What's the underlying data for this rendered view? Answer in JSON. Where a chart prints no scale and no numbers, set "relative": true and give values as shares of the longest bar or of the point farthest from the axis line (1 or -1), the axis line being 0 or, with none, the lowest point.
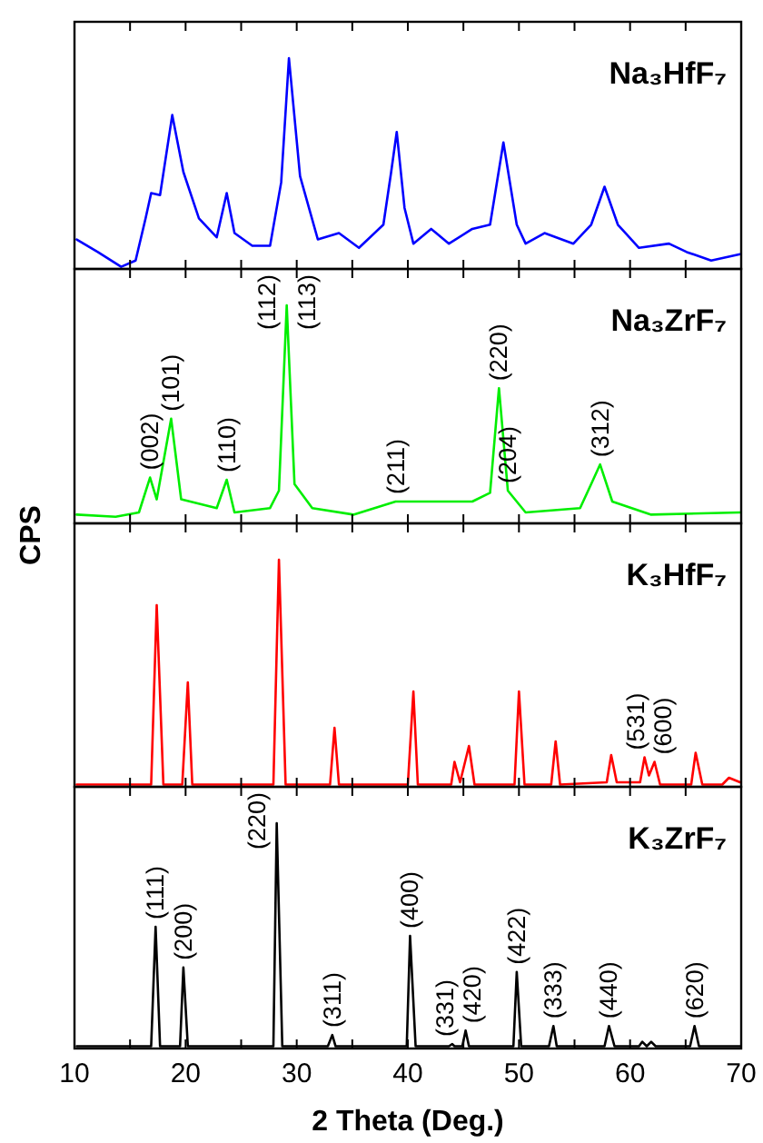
{
  "chart_data": [
    {
      "type": "line",
      "title": "Na₃HfF₇",
      "relative": true,
      "xlim": [
        10,
        70
      ],
      "xticks": [
        10,
        {
          "value": 15,
          "label": null
        },
        20,
        {
          "value": 25,
          "label": null
        },
        30,
        {
          "value": 35,
          "label": null
        },
        40,
        {
          "value": 45,
          "label": null
        },
        50,
        {
          "value": 55,
          "label": null
        },
        60,
        {
          "value": 65,
          "label": null
        },
        70
      ],
      "tick_labels": false,
      "grid": false,
      "legend": false,
      "series": [
        {
          "color": "#0000ff",
          "x": [
            10.2,
            12.1,
            14.2,
            15.5,
            16.4,
            16.9,
            17.7,
            18.8,
            19.8,
            21.2,
            22.8,
            23.7,
            24.4,
            26.0,
            27.6,
            28.6,
            29.3,
            30.3,
            31.9,
            33.8,
            35.6,
            37.8,
            38.5,
            39.0,
            39.7,
            40.5,
            42.1,
            43.7,
            45.8,
            47.4,
            48.6,
            49.8,
            50.6,
            52.3,
            54.9,
            56.5,
            57.7,
            58.9,
            60.8,
            63.5,
            65.1,
            67.3,
            69.9
          ],
          "values": [
            0.14,
            0.08,
            0.01,
            0.04,
            0.24,
            0.36,
            0.35,
            0.73,
            0.46,
            0.24,
            0.15,
            0.36,
            0.17,
            0.11,
            0.11,
            0.41,
            1.0,
            0.44,
            0.14,
            0.17,
            0.1,
            0.21,
            0.46,
            0.65,
            0.29,
            0.12,
            0.19,
            0.12,
            0.19,
            0.21,
            0.6,
            0.21,
            0.12,
            0.17,
            0.12,
            0.21,
            0.39,
            0.21,
            0.1,
            0.12,
            0.08,
            0.04,
            0.07
          ]
        }
      ]
    },
    {
      "type": "line",
      "title": "Na₃ZrF₇",
      "ylabel": "CPS",
      "relative": true,
      "xlim": [
        10,
        70
      ],
      "xticks": [
        10,
        {
          "value": 15,
          "label": null
        },
        20,
        {
          "value": 25,
          "label": null
        },
        30,
        {
          "value": 35,
          "label": null
        },
        40,
        {
          "value": 45,
          "label": null
        },
        50,
        {
          "value": 55,
          "label": null
        },
        60,
        {
          "value": 65,
          "label": null
        },
        70
      ],
      "tick_labels": false,
      "grid": false,
      "legend": false,
      "series": [
        {
          "color": "#00ee00",
          "x": [
            10.2,
            13.7,
            15.8,
            16.8,
            17.4,
            18.7,
            19.6,
            22.8,
            23.7,
            24.4,
            27.6,
            28.4,
            29.1,
            29.8,
            31.4,
            35.1,
            38.9,
            45.8,
            47.4,
            48.2,
            49.0,
            50.6,
            55.5,
            56.5,
            57.3,
            58.4,
            61.9,
            69.9
          ],
          "values": [
            0.04,
            0.03,
            0.05,
            0.21,
            0.11,
            0.48,
            0.11,
            0.07,
            0.2,
            0.05,
            0.07,
            0.15,
            1.0,
            0.18,
            0.07,
            0.04,
            0.1,
            0.1,
            0.14,
            0.62,
            0.15,
            0.05,
            0.07,
            0.18,
            0.27,
            0.1,
            0.04,
            0.05
          ]
        }
      ],
      "annotations": [
        {
          "text": "(002)",
          "x": 16.8,
          "y": 0.21
        },
        {
          "text": "(101)",
          "x": 18.7,
          "y": 0.48
        },
        {
          "text": "(110)",
          "x": 23.7,
          "y": 0.2
        },
        {
          "text": "(112)",
          "x": 29.1,
          "y": 1.0
        },
        {
          "text": "(113)",
          "x": 29.1,
          "y": 1.0
        },
        {
          "text": "(211)",
          "x": 38.9,
          "y": 0.1
        },
        {
          "text": "(220)",
          "x": 48.2,
          "y": 0.62
        },
        {
          "text": "(204)",
          "x": 49.0,
          "y": 0.15
        },
        {
          "text": "(312)",
          "x": 57.3,
          "y": 0.27
        }
      ]
    },
    {
      "type": "line",
      "title": "K₃HfF₇",
      "relative": true,
      "xlim": [
        10,
        70
      ],
      "xticks": [
        10,
        {
          "value": 15,
          "label": null
        },
        20,
        {
          "value": 25,
          "label": null
        },
        30,
        {
          "value": 35,
          "label": null
        },
        40,
        {
          "value": 45,
          "label": null
        },
        50,
        {
          "value": 55,
          "label": null
        },
        60,
        {
          "value": 65,
          "label": null
        },
        70
      ],
      "tick_labels": false,
      "grid": false,
      "legend": false,
      "series": [
        {
          "color": "#ff0000",
          "x": [
            10.2,
            16.9,
            17.4,
            18.0,
            19.7,
            20.2,
            20.6,
            27.9,
            28.4,
            29.0,
            33.0,
            33.4,
            33.8,
            40.0,
            40.5,
            40.9,
            43.9,
            44.2,
            44.7,
            45.5,
            46.0,
            49.6,
            50.0,
            50.5,
            52.9,
            53.3,
            53.7,
            57.9,
            58.3,
            58.8,
            60.9,
            61.3,
            61.7,
            62.2,
            62.7,
            65.5,
            65.9,
            66.5,
            68.3,
            68.9,
            69.9
          ],
          "values": [
            0.01,
            0.01,
            0.8,
            0.01,
            0.01,
            0.46,
            0.01,
            0.01,
            1.0,
            0.01,
            0.01,
            0.26,
            0.01,
            0.01,
            0.42,
            0.01,
            0.01,
            0.11,
            0.02,
            0.18,
            0.01,
            0.01,
            0.42,
            0.01,
            0.01,
            0.2,
            0.01,
            0.02,
            0.14,
            0.02,
            0.02,
            0.13,
            0.05,
            0.11,
            0.01,
            0.01,
            0.15,
            0.01,
            0.01,
            0.04,
            0.02
          ]
        }
      ],
      "annotations": [
        {
          "text": "(531)",
          "x": 61.3,
          "y": 0.13
        },
        {
          "text": "(600)",
          "x": 62.2,
          "y": 0.11
        }
      ]
    },
    {
      "type": "line",
      "title": "K₃ZrF₇",
      "xlabel": "2 Theta (Deg.)",
      "relative": true,
      "xlim": [
        10,
        70
      ],
      "xticks": [
        10,
        {
          "value": 15,
          "label": null
        },
        20,
        {
          "value": 25,
          "label": null
        },
        30,
        {
          "value": 35,
          "label": null
        },
        40,
        {
          "value": 45,
          "label": null
        },
        50,
        {
          "value": 55,
          "label": null
        },
        60,
        {
          "value": 65,
          "label": null
        },
        70
      ],
      "tick_labels": "x",
      "grid": false,
      "legend": false,
      "series": [
        {
          "color": "#000000",
          "x": [
            10.2,
            16.9,
            17.3,
            17.7,
            19.5,
            19.8,
            20.2,
            27.9,
            28.2,
            28.7,
            32.8,
            33.2,
            33.5,
            39.9,
            40.2,
            40.7,
            43.7,
            44.0,
            44.2,
            44.9,
            45.2,
            45.5,
            49.5,
            49.8,
            50.2,
            52.7,
            53.1,
            53.4,
            57.7,
            58.1,
            58.6,
            60.8,
            61.1,
            61.5,
            61.9,
            62.3,
            65.4,
            65.8,
            66.2,
            69.9
          ],
          "values": [
            0.01,
            0.01,
            0.54,
            0.01,
            0.01,
            0.36,
            0.01,
            0.01,
            1.0,
            0.01,
            0.01,
            0.06,
            0.01,
            0.01,
            0.5,
            0.01,
            0.01,
            0.02,
            0.01,
            0.01,
            0.08,
            0.01,
            0.01,
            0.34,
            0.01,
            0.01,
            0.1,
            0.01,
            0.01,
            0.1,
            0.01,
            0.01,
            0.03,
            0.01,
            0.03,
            0.01,
            0.01,
            0.1,
            0.01,
            0.01
          ]
        }
      ],
      "annotations": [
        {
          "text": "(111)",
          "x": 17.3,
          "y": 0.54
        },
        {
          "text": "(200)",
          "x": 19.8,
          "y": 0.36
        },
        {
          "text": "(220)",
          "x": 28.2,
          "y": 1.0
        },
        {
          "text": "(311)",
          "x": 33.2,
          "y": 0.06
        },
        {
          "text": "(400)",
          "x": 40.2,
          "y": 0.5
        },
        {
          "text": "(331)",
          "x": 44.0,
          "y": 0.02
        },
        {
          "text": "(420)",
          "x": 45.2,
          "y": 0.08
        },
        {
          "text": "(422)",
          "x": 49.8,
          "y": 0.34
        },
        {
          "text": "(333)",
          "x": 53.1,
          "y": 0.1
        },
        {
          "text": "(440)",
          "x": 58.1,
          "y": 0.1
        },
        {
          "text": "(620)",
          "x": 65.8,
          "y": 0.1
        }
      ]
    }
  ]
}
